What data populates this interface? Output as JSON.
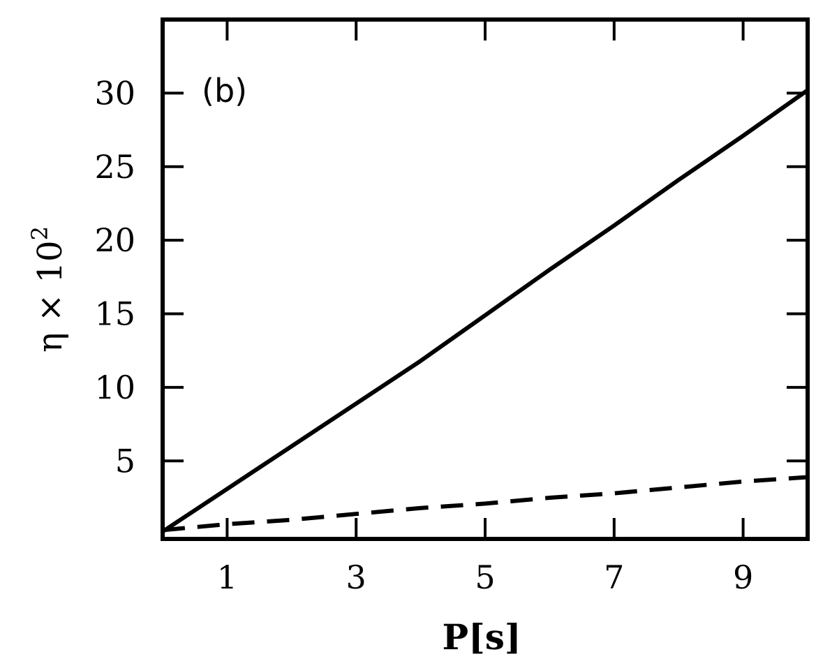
{
  "chart_data": {
    "type": "line",
    "panel_label": "(b)",
    "title": "",
    "xlabel": "P[s]",
    "ylabel": "η × 10²",
    "ylabel_parts": {
      "base": "η × 10",
      "superscript": "2"
    },
    "xlim": [
      0,
      10
    ],
    "ylim": [
      -0.3,
      35
    ],
    "x_ticks": [
      1,
      3,
      5,
      7,
      9
    ],
    "y_ticks": [
      5,
      10,
      15,
      20,
      25,
      30
    ],
    "x_tick_labels": [
      "1",
      "3",
      "5",
      "7",
      "9"
    ],
    "y_tick_labels": [
      "5",
      "10",
      "15",
      "20",
      "25",
      "30"
    ],
    "grid": false,
    "legend": "none",
    "series": [
      {
        "style": "solid",
        "color": "#000000",
        "x": [
          0,
          1,
          2,
          3,
          4,
          5,
          6,
          7,
          8,
          9,
          10
        ],
        "y": [
          0.2,
          3.1,
          6.0,
          8.9,
          11.8,
          14.9,
          18.0,
          21.0,
          24.1,
          27.1,
          30.2
        ]
      },
      {
        "style": "dashed",
        "color": "#000000",
        "x": [
          0,
          1,
          2,
          3,
          4,
          5,
          6,
          7,
          8,
          9,
          10
        ],
        "y": [
          0.3,
          0.7,
          1.0,
          1.4,
          1.8,
          2.1,
          2.5,
          2.8,
          3.2,
          3.6,
          3.9
        ]
      }
    ]
  }
}
